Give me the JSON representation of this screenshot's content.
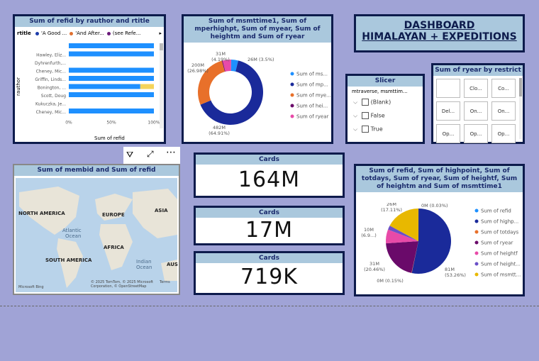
{
  "bar": {
    "title": "Sum of refid by rauthor and rtitle",
    "legend_label": "rtitle",
    "legend": [
      {
        "label": "'A Good ...",
        "color": "#1d3caa"
      },
      {
        "label": "'And After...",
        "color": "#e07030"
      },
      {
        "label": "(see Refe...",
        "color": "#6a1a7a"
      }
    ],
    "ylabel": "rauthor",
    "xlabel": "Sum of refid",
    "ticks": [
      "0%",
      "50%",
      "100%"
    ],
    "rows": [
      {
        "label": "",
        "value": 1.0,
        "second": 0
      },
      {
        "label": "Hawley, Eliz...",
        "value": 1.0,
        "second": 0
      },
      {
        "label": "Dyhrenfurth,...",
        "value": 0,
        "second": 0
      },
      {
        "label": "Cheney, Mic...",
        "value": 1.0,
        "second": 0
      },
      {
        "label": "Griffin, Linds...",
        "value": 1.0,
        "second": 0
      },
      {
        "label": "Bonington, ...",
        "value": 0.84,
        "second": 0.16
      },
      {
        "label": "Scott, Doug",
        "value": 1.0,
        "second": 0
      },
      {
        "label": "Kukuczka, Je...",
        "value": 0,
        "second": 0
      },
      {
        "label": "Cheney, Mic...",
        "value": 1.0,
        "second": 0
      }
    ],
    "bar_color": "#1e90ff",
    "second_color": "#f5d45a"
  },
  "donut": {
    "title": "Sum of msmttime1, Sum of mperhighpt, Sum of myear, Sum of heightm and Sum of ryear",
    "slices": [
      {
        "label": "Sum of ms...",
        "value": 3.5,
        "color": "#1e90ff"
      },
      {
        "label": "Sum of mp...",
        "value": 64.91,
        "color": "#1a2a9a"
      },
      {
        "label": "Sum of mye...",
        "value": 26.98,
        "color": "#e8702a"
      },
      {
        "label": "Sum of hei...",
        "value": 0.4,
        "color": "#6a0a6a"
      },
      {
        "label": "Sum of ryear",
        "value": 4.19,
        "color": "#e84aa8"
      }
    ],
    "labels": {
      "l1": "31M",
      "l1b": "(4.19%)",
      "l2": "26M (3.5%)",
      "l3": "200M",
      "l3b": "(26.98%)",
      "l4": "482M",
      "l4b": "(64.91%)"
    }
  },
  "header": {
    "line1": "DASHBOARD",
    "line2": "HIMALAYAN + EXPEDITIONS"
  },
  "slicer": {
    "title": "Slicer",
    "field": "mtraverse, msmttim...",
    "options": [
      "(Blank)",
      "False",
      "True"
    ]
  },
  "buttons": {
    "title": "Sum of ryear by restrict",
    "items": [
      "",
      "Clo...",
      "Co...",
      "Del...",
      "On...",
      "On...",
      "Op...",
      "Op...",
      "Op..."
    ]
  },
  "map": {
    "title": "Sum of membid and Sum of refid",
    "labels": {
      "na": "NORTH AMERICA",
      "eu": "EUROPE",
      "as": "ASIA",
      "at": "Atlantic",
      "at2": "Ocean",
      "af": "AFRICA",
      "sa": "SOUTH AMERICA",
      "io": "Indian",
      "io2": "Ocean",
      "au": "AUS"
    },
    "attribution": "© 2025 TomTom, © 2025 Microsoft Corporation, © OpenStreetMap",
    "terms": "Terms",
    "brand": "Microsoft Bing"
  },
  "cards": [
    {
      "title": "Cards",
      "value": "164M"
    },
    {
      "title": "Cards",
      "value": "17M"
    },
    {
      "title": "Cards",
      "value": "719K"
    }
  ],
  "pie": {
    "title": "Sum of refid, Sum of highpoint, Sum of totdays, Sum of ryear, Sum of heightf, Sum of heightm and Sum of msmttime1",
    "slices": [
      {
        "label": "Sum of refid",
        "value": 0.03,
        "color": "#1e90ff"
      },
      {
        "label": "Sum of highp...",
        "value": 53.26,
        "color": "#1a2a9a"
      },
      {
        "label": "Sum of totdays",
        "value": 0.15,
        "color": "#e8702a"
      },
      {
        "label": "Sum of ryear",
        "value": 20.46,
        "color": "#6a0a6a"
      },
      {
        "label": "Sum of heightf",
        "value": 6.9,
        "color": "#e84aa8"
      },
      {
        "label": "Sum of height...",
        "value": 2.08,
        "color": "#6a50c8"
      },
      {
        "label": "Sum of msmtt...",
        "value": 17.11,
        "color": "#e8b800"
      }
    ],
    "labels": {
      "a": "26M",
      "ab": "(17.11%)",
      "b": "0M (0.03%)",
      "c": "10M",
      "cb": "(6.9...)",
      "d": "31M",
      "db": "(20.46%)",
      "e": "81M",
      "eb": "(53.26%)",
      "f": "0M (0.15%)"
    }
  }
}
